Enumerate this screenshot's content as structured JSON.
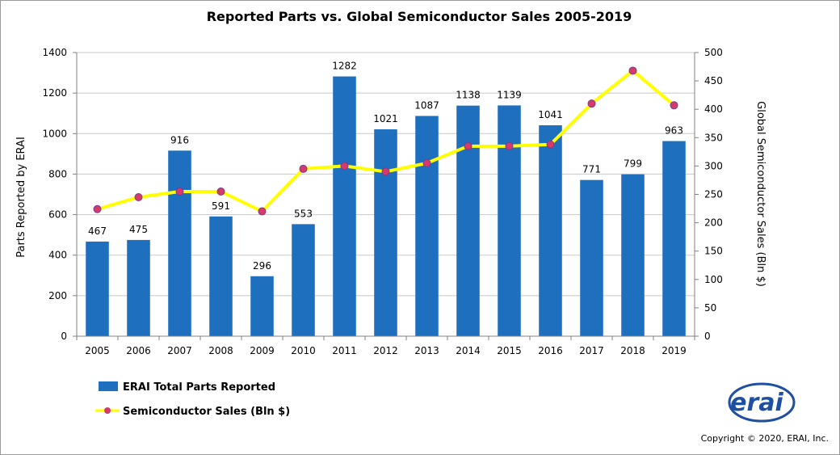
{
  "chart_data": {
    "type": "bar",
    "title": "Reported Parts vs. Global Semiconductor Sales 2005-2019",
    "categories": [
      "2005",
      "2006",
      "2007",
      "2008",
      "2009",
      "2010",
      "2011",
      "2012",
      "2013",
      "2014",
      "2015",
      "2016",
      "2017",
      "2018",
      "2019"
    ],
    "series": [
      {
        "name": "ERAI Total Parts Reported",
        "type": "bar",
        "axis": "left",
        "color": "#1f6fbf",
        "values": [
          467,
          475,
          916,
          591,
          296,
          553,
          1282,
          1021,
          1087,
          1138,
          1139,
          1041,
          771,
          799,
          963
        ]
      },
      {
        "name": "Semiconductor Sales (Bln $)",
        "type": "line",
        "axis": "right",
        "color": "#ffff00",
        "marker_color": "#d63a6a",
        "values": [
          224,
          245,
          255,
          255,
          220,
          295,
          300,
          290,
          305,
          335,
          335,
          338,
          410,
          468,
          407
        ]
      }
    ],
    "ylabel": "Parts Reported by ERAI",
    "ylabel_right": "Global Semiconductor Sales (Bln $)",
    "ylim": [
      0,
      1400
    ],
    "ylim_right": [
      0,
      500
    ],
    "yticks": [
      0,
      200,
      400,
      600,
      800,
      1000,
      1200,
      1400
    ],
    "yticks_right": [
      0,
      50,
      100,
      150,
      200,
      250,
      300,
      350,
      400,
      450,
      500
    ],
    "grid": true,
    "legend_position": "bottom-left"
  },
  "logo": {
    "text": "erai",
    "icon": "erai-logo"
  },
  "copyright": "Copyright © 2020, ERAI, Inc."
}
